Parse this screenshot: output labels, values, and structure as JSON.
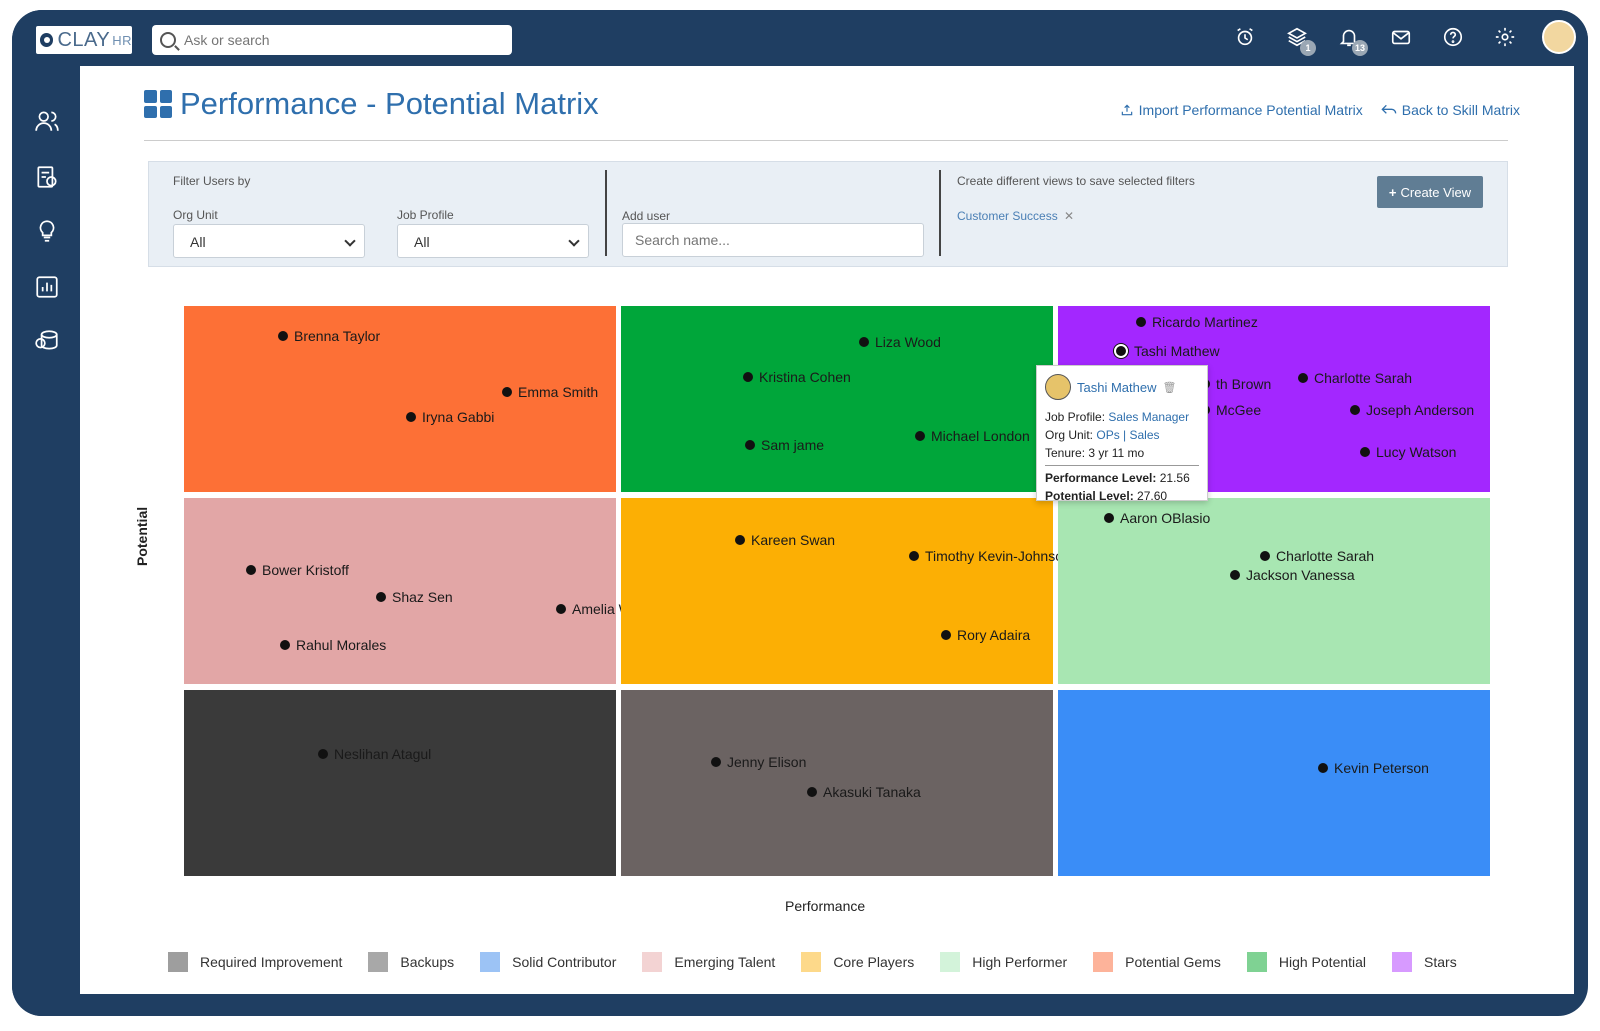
{
  "brand": {
    "name": "CLAY",
    "suffix": "HR"
  },
  "search": {
    "placeholder": "Ask or search"
  },
  "header_icons": [
    {
      "name": "alarm-clock-icon"
    },
    {
      "name": "layers-icon",
      "badge": "1"
    },
    {
      "name": "bell-icon",
      "badge": "13"
    },
    {
      "name": "mail-icon"
    },
    {
      "name": "help-icon"
    },
    {
      "name": "gear-icon"
    }
  ],
  "page": {
    "title": "Performance - Potential Matrix",
    "import_link": "Import Performance Potential Matrix",
    "back_link": "Back to Skill Matrix"
  },
  "filters": {
    "heading": "Filter Users by",
    "org_unit_label": "Org Unit",
    "org_unit_value": "All",
    "job_profile_label": "Job Profile",
    "job_profile_value": "All",
    "add_user_label": "Add user",
    "add_user_placeholder": "Search name...",
    "views_text": "Create different views to save selected filters",
    "saved_view": "Customer Success",
    "create_view_button": "Create View"
  },
  "axes": {
    "x": "Performance",
    "y": "Potential"
  },
  "matrix": {
    "cells": [
      {
        "category": "Potential Gems",
        "color": "#fd7036",
        "people": [
          "Brenna Taylor",
          "Emma Smith",
          "Iryna Gabbi"
        ]
      },
      {
        "category": "High Potential",
        "color": "#00a63a",
        "people": [
          "Liza Wood",
          "Kristina Cohen",
          "Sam jame",
          "Michael London"
        ]
      },
      {
        "category": "Stars",
        "color": "#a327ff",
        "people": [
          "Ricardo Martinez",
          "Tashi Mathew",
          "th Brown",
          "Charlotte Sarah",
          "McGee",
          "Joseph Anderson",
          "Lucy Watson"
        ]
      },
      {
        "category": "Emerging Talent",
        "color": "#e2a6a6",
        "people": [
          "Bower Kristoff",
          "Shaz Sen",
          "Rahul Morales",
          "Amelia Wiggins"
        ]
      },
      {
        "category": "Core Players",
        "color": "#fcaf04",
        "people": [
          "Kareen Swan",
          "Timothy Kevin-Johnson",
          "Rory Adaira"
        ]
      },
      {
        "category": "High Performer",
        "color": "#a8e6b2",
        "people": [
          "Aaron OBlasio",
          "Charlotte Sarah",
          "Jackson Vanessa"
        ]
      },
      {
        "category": "Required Improvement",
        "color": "#3a3a3a",
        "people": [
          "Neslihan Atagul"
        ]
      },
      {
        "category": "Backups",
        "color": "#6b6362",
        "people": [
          "Jenny Elison",
          "Akasuki Tanaka"
        ]
      },
      {
        "category": "Solid Contributor",
        "color": "#3a8df7",
        "people": [
          "Kevin Peterson"
        ]
      }
    ]
  },
  "tooltip": {
    "name": "Tashi Mathew",
    "job_profile_label": "Job Profile:",
    "job_profile": "Sales Manager",
    "org_unit_label": "Org Unit:",
    "org_unit": "OPs | Sales",
    "tenure": "Tenure: 3 yr 11 mo",
    "performance_label": "Performance Level:",
    "performance": "21.56",
    "potential_label": "Potential Level:",
    "potential": "27.60"
  },
  "legend": [
    {
      "label": "Required Improvement",
      "color": "#9e9e9e"
    },
    {
      "label": "Backups",
      "color": "#a8a8a8"
    },
    {
      "label": "Solid Contributor",
      "color": "#9cc3f5"
    },
    {
      "label": "Emerging Talent",
      "color": "#f3d3d3"
    },
    {
      "label": "Core Players",
      "color": "#fdd98a"
    },
    {
      "label": "High Performer",
      "color": "#d3f3da"
    },
    {
      "label": "Potential Gems",
      "color": "#fdb39a"
    },
    {
      "label": "High Potential",
      "color": "#7fd293"
    },
    {
      "label": "Stars",
      "color": "#d79aff"
    }
  ]
}
